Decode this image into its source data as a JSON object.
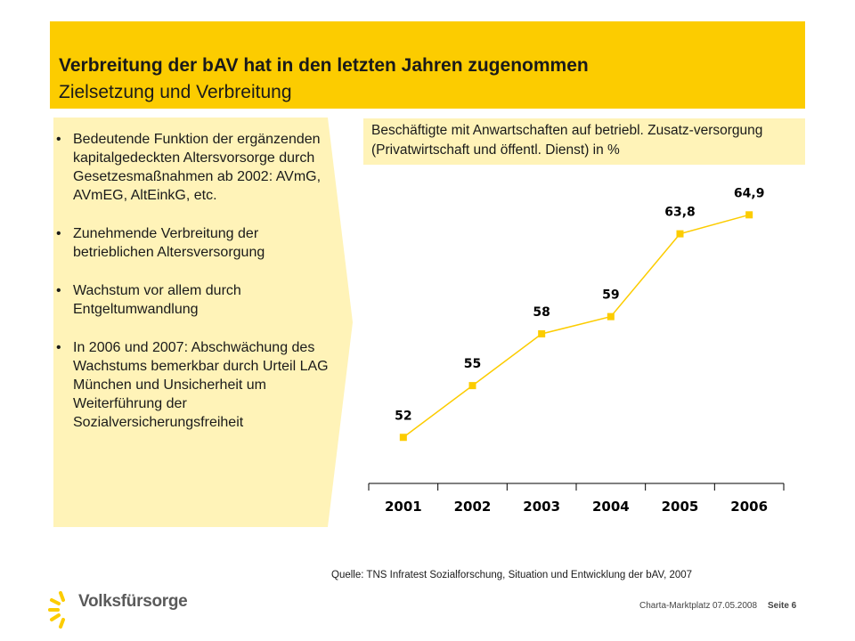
{
  "header": {
    "title": "Verbreitung der bAV hat in den letzten Jahren zugenommen",
    "subtitle": "Zielsetzung und Verbreitung"
  },
  "bullets": [
    "Bedeutende Funktion der ergänzenden kapitalgedeckten Altersvorsorge durch Gesetzesmaßnahmen ab 2002: AVmG, AVmEG, AltEinkG, etc.",
    "Zunehmende Verbreitung der betrieblichen Altersversorgung",
    "Wachstum vor allem durch Entgeltumwandlung",
    "In 2006 und 2007: Abschwächung des Wachstums bemerkbar durch Urteil LAG München und Unsicherheit um Weiterführung der Sozialversicherungsfreiheit"
  ],
  "bullet_symbol": "•",
  "chart_caption": "Beschäftigte mit Anwartschaften auf betriebl. Zusatz-versorgung (Privatwirtschaft und öffentl. Dienst) in %",
  "chart_data": {
    "type": "line",
    "title": "",
    "categories": [
      "2001",
      "2002",
      "2003",
      "2004",
      "2005",
      "2006"
    ],
    "series": [
      {
        "values": [
          52,
          55,
          58,
          59,
          63.8,
          64.9
        ],
        "labels": [
          "52",
          "55",
          "58",
          "59",
          "63,8",
          "64,9"
        ]
      }
    ],
    "xlabel": "",
    "ylabel": "",
    "ylim": [
      50,
      66
    ],
    "grid": false,
    "legend": "none",
    "marker": "square",
    "line_color": "#fccc00"
  },
  "source": "Quelle: TNS Infratest Sozialforschung, Situation und Entwicklung der bAV, 2007",
  "logo": {
    "text": "Volksfürsorge",
    "icon": "sunburst-logo-icon"
  },
  "footer": {
    "company": "Charta-Marktplatz",
    "date": "07.05.2008",
    "page": "Seite 6"
  },
  "colors": {
    "accent": "#fccc00",
    "panel": "#fff3b8",
    "text": "#1a1a1a"
  }
}
